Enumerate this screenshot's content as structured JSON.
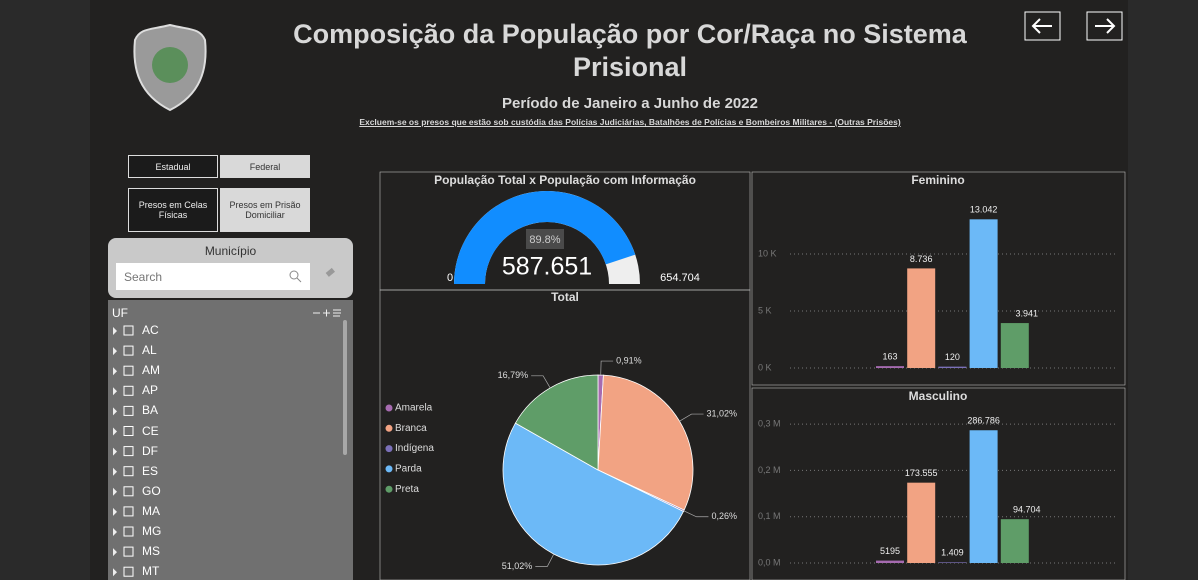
{
  "header": {
    "title": "Composição da População por Cor/Raça no Sistema Prisional",
    "subtitle": "Período de Janeiro a Junho de 2022",
    "note": "Excluem-se os presos que estão sob custódia das Polícias Judiciárias, Batalhões de Polícias e Bombeiros Militares - (Outras Prisões)"
  },
  "buttons": {
    "scope": [
      "Estadual",
      "Federal"
    ],
    "custody": [
      "Presos em Celas Físicas",
      "Presos em Prisão Domiciliar"
    ]
  },
  "slicer": {
    "title": "Município",
    "search_placeholder": "Search",
    "list_title": "UF",
    "items": [
      "AC",
      "AL",
      "AM",
      "AP",
      "BA",
      "CE",
      "DF",
      "ES",
      "GO",
      "MA",
      "MG",
      "MS",
      "MT"
    ]
  },
  "chart_data": [
    {
      "type": "gauge",
      "title": "População Total x População com Informação",
      "min": 0,
      "max": {
        "value": 654704,
        "label": "654.704"
      },
      "value": 587651,
      "value_label": "587.651",
      "percent_label": "89.8%",
      "color": "#118dff"
    },
    {
      "type": "pie",
      "title": "Total",
      "categories": [
        "Amarela",
        "Branca",
        "Indígena",
        "Parda",
        "Preta"
      ],
      "values": [
        0.91,
        31.02,
        0.26,
        51.02,
        16.79
      ],
      "value_labels": [
        "0,91%",
        "31,02%",
        "0,26%",
        "51,02%",
        "16,79%"
      ],
      "colors": [
        "#a66bb0",
        "#f2a383",
        "#7b70b8",
        "#6cb9f7",
        "#5f9d68"
      ]
    },
    {
      "type": "bar",
      "title": "Feminino",
      "values": [
        163,
        8736,
        120,
        13042,
        3941
      ],
      "value_labels": [
        "163",
        "8.736",
        "120",
        "13.042",
        "3.941"
      ],
      "colors": [
        "#a66bb0",
        "#f2a383",
        "#7b70b8",
        "#6cb9f7",
        "#5f9d68"
      ],
      "ylim": [
        0,
        15000
      ],
      "yticks": [
        {
          "value": 0,
          "label": "0 K"
        },
        {
          "value": 5000,
          "label": "5 K"
        },
        {
          "value": 10000,
          "label": "10 K"
        }
      ],
      "grid": true
    },
    {
      "type": "bar",
      "title": "Masculino",
      "values": [
        5195,
        173555,
        1409,
        286786,
        94704
      ],
      "value_labels": [
        "5195",
        "173.555",
        "1.409",
        "286.786",
        "94.704"
      ],
      "colors": [
        "#a66bb0",
        "#f2a383",
        "#7b70b8",
        "#6cb9f7",
        "#5f9d68"
      ],
      "ylim": [
        0,
        350000
      ],
      "yticks": [
        {
          "value": 0,
          "label": "0,0 M"
        },
        {
          "value": 100000,
          "label": "0,1 M"
        },
        {
          "value": 200000,
          "label": "0,2 M"
        },
        {
          "value": 300000,
          "label": "0,3 M"
        }
      ],
      "grid": true
    }
  ]
}
